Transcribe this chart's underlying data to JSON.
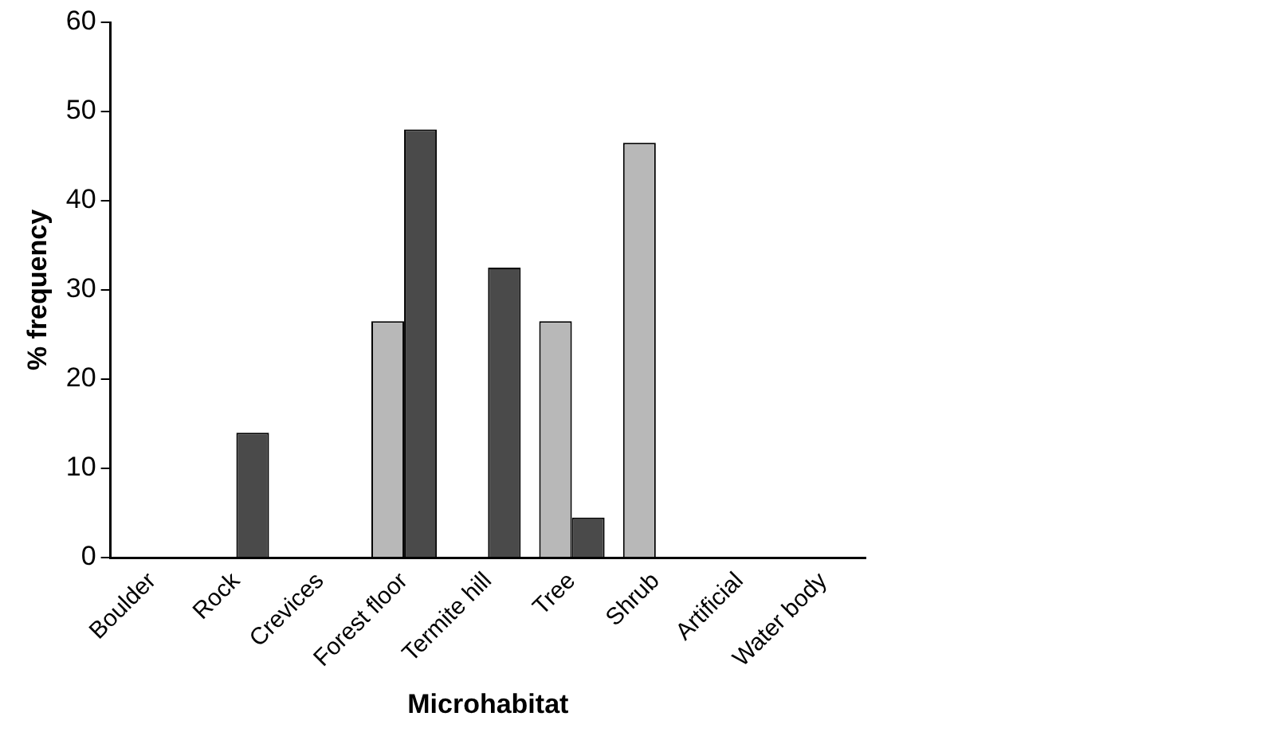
{
  "chart_data": {
    "type": "bar",
    "xlabel": "Microhabitat",
    "ylabel": "% frequency",
    "categories": [
      "Boulder",
      "Rock",
      "Crevices",
      "Forest floor",
      "Termite hill",
      "Tree",
      "Shrub",
      "Artificial",
      "Water body"
    ],
    "series": [
      {
        "color": "#b8b8b8",
        "values": [
          0,
          0,
          0,
          26.5,
          0,
          26.5,
          46.5,
          0,
          0
        ]
      },
      {
        "color": "#4a4a4a",
        "values": [
          0,
          14,
          0,
          48,
          32.5,
          4.5,
          0,
          0,
          0
        ]
      }
    ],
    "ylim": [
      0,
      60
    ],
    "yticks": [
      0,
      10,
      20,
      30,
      40,
      50,
      60
    ],
    "grid": false,
    "legend": false
  }
}
